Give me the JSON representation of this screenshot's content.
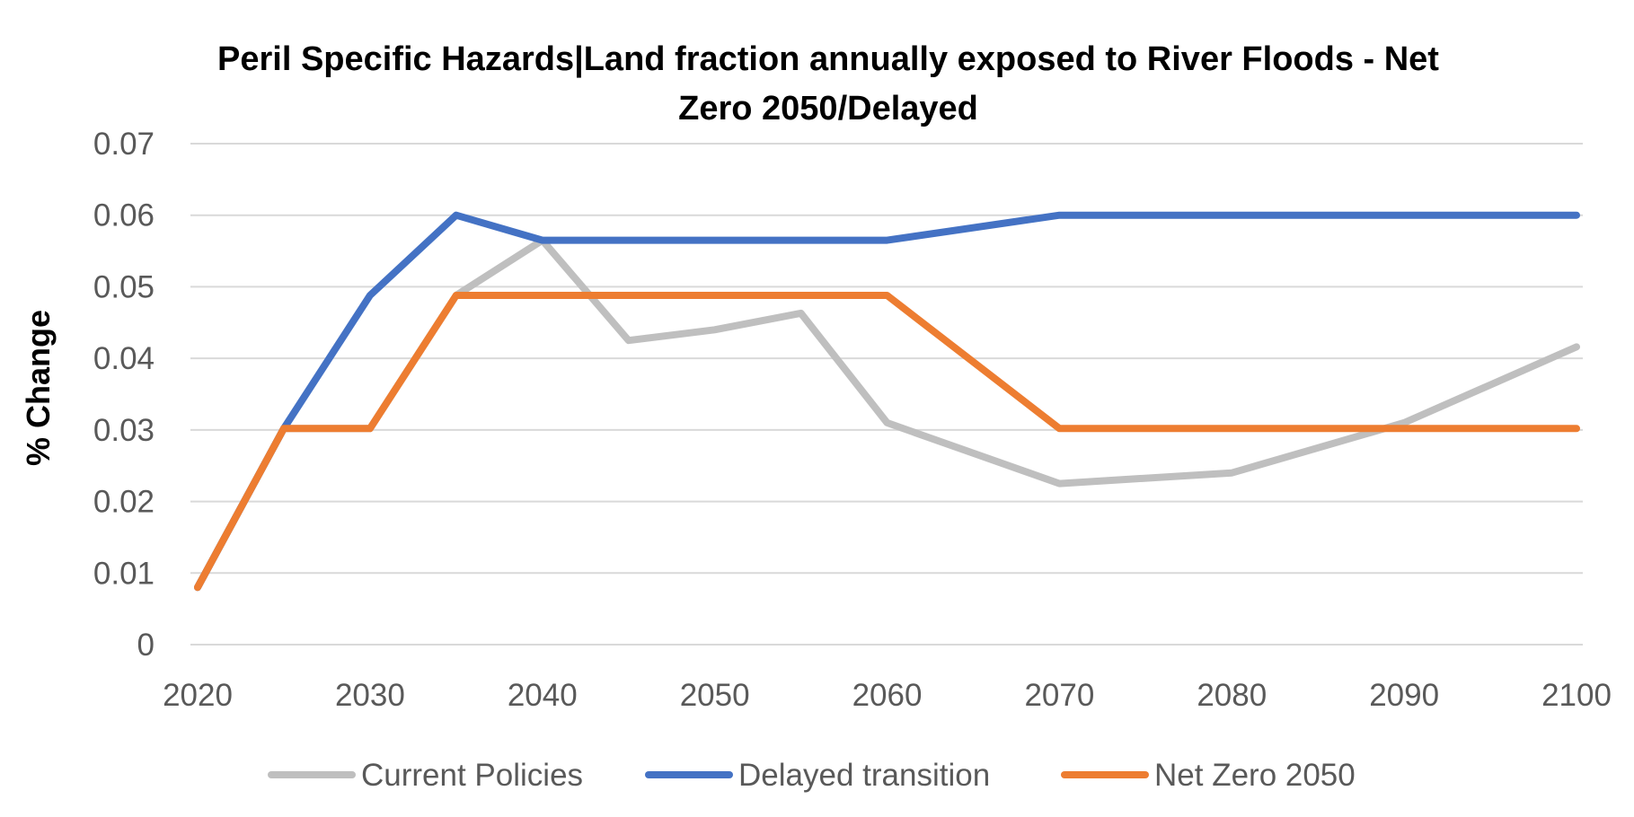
{
  "chart_data": {
    "type": "line",
    "title_line1": "Peril Specific Hazards|Land fraction annually exposed to River Floods - Net",
    "title_line2": "Zero 2050/Delayed",
    "xlabel": "",
    "ylabel": "% Change",
    "x_ticks": [
      "2020",
      "2030",
      "2040",
      "2050",
      "2060",
      "2070",
      "2080",
      "2090",
      "2100"
    ],
    "y_ticks": [
      "0",
      "0.01",
      "0.02",
      "0.03",
      "0.04",
      "0.05",
      "0.06",
      "0.07"
    ],
    "xlim": [
      2020,
      2100
    ],
    "ylim": [
      0,
      0.07
    ],
    "grid": "horizontal",
    "legend_position": "bottom",
    "series": [
      {
        "name": "Current Policies",
        "color": "#bfbfbf",
        "points": [
          [
            2020,
            0.008
          ],
          [
            2025,
            0.0302
          ],
          [
            2030,
            0.0302
          ],
          [
            2035,
            0.0488
          ],
          [
            2040,
            0.0565
          ],
          [
            2045,
            0.0425
          ],
          [
            2050,
            0.044
          ],
          [
            2055,
            0.0463
          ],
          [
            2060,
            0.031
          ],
          [
            2070,
            0.0225
          ],
          [
            2080,
            0.024
          ],
          [
            2090,
            0.031
          ],
          [
            2100,
            0.0416
          ]
        ]
      },
      {
        "name": "Delayed transition",
        "color": "#4472c4",
        "points": [
          [
            2020,
            0.008
          ],
          [
            2025,
            0.0302
          ],
          [
            2030,
            0.0488
          ],
          [
            2035,
            0.06
          ],
          [
            2040,
            0.0565
          ],
          [
            2060,
            0.0565
          ],
          [
            2070,
            0.06
          ],
          [
            2100,
            0.06
          ]
        ]
      },
      {
        "name": "Net Zero 2050",
        "color": "#ed7d31",
        "points": [
          [
            2020,
            0.008
          ],
          [
            2025,
            0.0302
          ],
          [
            2030,
            0.0302
          ],
          [
            2035,
            0.0488
          ],
          [
            2060,
            0.0488
          ],
          [
            2070,
            0.0302
          ],
          [
            2100,
            0.0302
          ]
        ]
      }
    ]
  }
}
